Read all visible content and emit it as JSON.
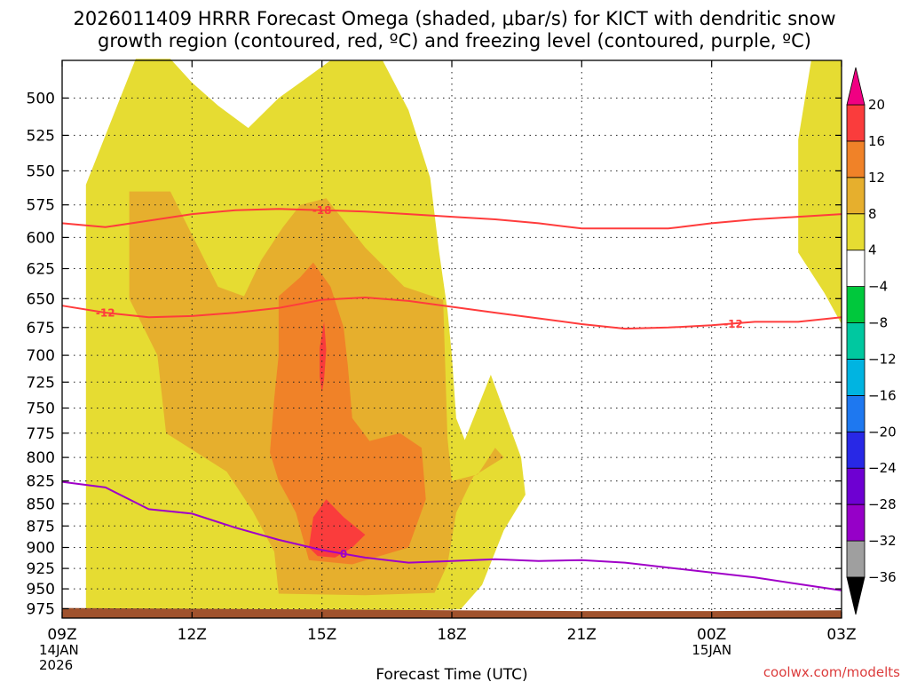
{
  "chart_data": {
    "type": "time-height cross section (filled contour)",
    "title": {
      "line1": "2026011409 HRRR Forecast Omega (shaded, μbar/s) for KICT with dendritic snow",
      "line2": "growth region (contoured, red, ºC) and freezing level (contoured, purple, ºC)"
    },
    "xlabel": "Forecast Time (UTC)",
    "ylabel": "",
    "x_range_hours": [
      0,
      18
    ],
    "x_ticks": [
      {
        "h": 0,
        "label": "09Z",
        "sub1": "14JAN",
        "sub2": "2026"
      },
      {
        "h": 3,
        "label": "12Z",
        "sub1": "",
        "sub2": ""
      },
      {
        "h": 6,
        "label": "15Z",
        "sub1": "",
        "sub2": ""
      },
      {
        "h": 9,
        "label": "18Z",
        "sub1": "",
        "sub2": ""
      },
      {
        "h": 12,
        "label": "21Z",
        "sub1": "",
        "sub2": ""
      },
      {
        "h": 15,
        "label": "00Z",
        "sub1": "15JAN",
        "sub2": ""
      },
      {
        "h": 18,
        "label": "03Z",
        "sub1": "",
        "sub2": ""
      }
    ],
    "y_range_hpa": [
      476,
      987
    ],
    "y_scale": "log",
    "y_ticks": [
      500,
      525,
      550,
      575,
      600,
      625,
      650,
      675,
      700,
      725,
      750,
      775,
      800,
      825,
      850,
      875,
      900,
      925,
      950,
      975
    ],
    "grid": true,
    "colorbar": {
      "levels": [
        -36,
        -32,
        -28,
        -24,
        -20,
        -16,
        -12,
        -8,
        -4,
        4,
        8,
        12,
        16,
        20
      ],
      "colors": [
        "#9f9f9f",
        "#9600c8",
        "#6e00d2",
        "#2828e6",
        "#1e78f0",
        "#00b4e1",
        "#00c8a0",
        "#00c83c",
        "#ffffff",
        "#e6dc32",
        "#e6af2d",
        "#f08228",
        "#fa3c3c",
        "#f00082"
      ],
      "extend": "both"
    },
    "omega_shading": [
      {
        "level": "4 to 8",
        "color": "#e6dc32",
        "region_points": [
          [
            0.55,
            980
          ],
          [
            0.55,
            560
          ],
          [
            1.7,
            475
          ],
          [
            2.5,
            475
          ],
          [
            3.0,
            490
          ],
          [
            3.6,
            505
          ],
          [
            4.3,
            520
          ],
          [
            5.0,
            500
          ],
          [
            5.6,
            488
          ],
          [
            6.2,
            476
          ],
          [
            7.4,
            476
          ],
          [
            8.0,
            508
          ],
          [
            8.5,
            555
          ],
          [
            8.7,
            610
          ],
          [
            8.9,
            660
          ],
          [
            9.0,
            700
          ],
          [
            9.1,
            760
          ],
          [
            9.3,
            782
          ],
          [
            9.9,
            718
          ],
          [
            10.6,
            800
          ],
          [
            10.7,
            840
          ],
          [
            10.2,
            880
          ],
          [
            9.7,
            945
          ],
          [
            9.2,
            976
          ],
          [
            5.0,
            980
          ]
        ]
      },
      {
        "level": "4 to 8",
        "color": "#e6dc32",
        "region_points": [
          [
            17.3,
            476
          ],
          [
            18.0,
            476
          ],
          [
            18.0,
            672
          ],
          [
            17.6,
            645
          ],
          [
            17.0,
            612
          ],
          [
            17.0,
            528
          ]
        ]
      },
      {
        "level": "8 to 12",
        "color": "#e6af2d",
        "region_points": [
          [
            1.55,
            565
          ],
          [
            2.5,
            565
          ],
          [
            3.0,
            598
          ],
          [
            3.6,
            640
          ],
          [
            4.2,
            648
          ],
          [
            4.6,
            618
          ],
          [
            5.1,
            592
          ],
          [
            5.5,
            575
          ],
          [
            6.1,
            570
          ],
          [
            7.0,
            608
          ],
          [
            7.9,
            640
          ],
          [
            8.8,
            651
          ],
          [
            8.9,
            780
          ],
          [
            9.0,
            825
          ],
          [
            9.6,
            818
          ],
          [
            10.0,
            790
          ],
          [
            10.2,
            800
          ],
          [
            9.5,
            820
          ],
          [
            9.1,
            860
          ],
          [
            8.9,
            920
          ],
          [
            8.6,
            955
          ],
          [
            7.0,
            958
          ],
          [
            5.0,
            956
          ],
          [
            4.9,
            905
          ],
          [
            4.4,
            858
          ],
          [
            3.8,
            815
          ],
          [
            2.4,
            775
          ],
          [
            2.2,
            700
          ],
          [
            1.55,
            650
          ]
        ]
      },
      {
        "level": "12 to 16",
        "color": "#f08228",
        "region_points": [
          [
            5.0,
            648
          ],
          [
            5.5,
            632
          ],
          [
            5.8,
            620
          ],
          [
            6.2,
            640
          ],
          [
            6.5,
            675
          ],
          [
            6.6,
            710
          ],
          [
            6.7,
            760
          ],
          [
            7.1,
            783
          ],
          [
            7.8,
            775
          ],
          [
            8.3,
            790
          ],
          [
            8.4,
            845
          ],
          [
            8.0,
            900
          ],
          [
            6.7,
            920
          ],
          [
            5.7,
            915
          ],
          [
            5.4,
            860
          ],
          [
            5.0,
            825
          ],
          [
            4.8,
            795
          ],
          [
            4.9,
            740
          ],
          [
            5.0,
            700
          ]
        ]
      },
      {
        "level": "16 to 20",
        "color": "#fa3c3c",
        "region_points": [
          [
            5.95,
            720
          ],
          [
            5.95,
            693
          ],
          [
            6.05,
            670
          ],
          [
            6.1,
            695
          ],
          [
            6.05,
            722
          ],
          [
            6.0,
            735
          ]
        ]
      },
      {
        "level": "16 to 20",
        "color": "#fa3c3c",
        "region_points": [
          [
            5.7,
            900
          ],
          [
            5.8,
            865
          ],
          [
            6.1,
            845
          ],
          [
            6.5,
            865
          ],
          [
            7.0,
            885
          ],
          [
            6.7,
            900
          ],
          [
            6.3,
            912
          ],
          [
            5.9,
            910
          ]
        ]
      }
    ],
    "series": [
      {
        "name": "-18 ºC isotherm (dendritic growth region top)",
        "color": "#ff3c3c",
        "label": "-18",
        "points": [
          [
            0,
            589
          ],
          [
            1,
            592
          ],
          [
            2,
            587
          ],
          [
            3,
            582
          ],
          [
            4,
            579
          ],
          [
            5,
            578
          ],
          [
            6,
            579
          ],
          [
            7,
            580
          ],
          [
            8,
            582
          ],
          [
            9,
            584
          ],
          [
            10,
            586
          ],
          [
            11,
            589
          ],
          [
            12,
            593
          ],
          [
            13,
            593
          ],
          [
            14,
            593
          ],
          [
            15,
            589
          ],
          [
            16,
            586
          ],
          [
            17,
            584
          ],
          [
            18,
            582
          ]
        ]
      },
      {
        "name": "-12 ºC isotherm (dendritic growth region bottom)",
        "color": "#ff3c3c",
        "label": "-12",
        "points": [
          [
            0,
            656
          ],
          [
            1,
            662
          ],
          [
            2,
            666
          ],
          [
            3,
            665
          ],
          [
            4,
            662
          ],
          [
            5,
            658
          ],
          [
            6,
            651
          ],
          [
            7,
            649
          ],
          [
            8,
            652
          ],
          [
            9,
            657
          ],
          [
            10,
            662
          ],
          [
            11,
            667
          ],
          [
            12,
            672
          ],
          [
            13,
            676
          ],
          [
            14,
            675
          ],
          [
            15,
            673
          ],
          [
            16,
            670
          ],
          [
            17,
            670
          ],
          [
            18,
            666
          ]
        ]
      },
      {
        "name": "0 ºC isotherm (freezing level)",
        "color": "#a000c8",
        "label": "0",
        "points": [
          [
            0,
            826
          ],
          [
            1,
            832
          ],
          [
            2,
            856
          ],
          [
            3,
            861
          ],
          [
            4,
            877
          ],
          [
            5,
            891
          ],
          [
            6,
            903
          ],
          [
            7,
            912
          ],
          [
            8,
            918
          ],
          [
            9,
            916
          ],
          [
            10,
            914
          ],
          [
            11,
            916
          ],
          [
            12,
            915
          ],
          [
            13,
            918
          ],
          [
            14,
            924
          ],
          [
            15,
            930
          ],
          [
            16,
            936
          ],
          [
            17,
            944
          ],
          [
            18,
            952
          ]
        ]
      }
    ],
    "terrain": {
      "color": "#a0522d",
      "surface_hpa": [
        [
          0,
          974
        ],
        [
          3,
          975
        ],
        [
          6,
          976
        ],
        [
          9,
          977
        ],
        [
          12,
          978
        ],
        [
          15,
          978
        ],
        [
          18,
          977
        ]
      ]
    },
    "credit": "coolwx.com/modelts"
  }
}
